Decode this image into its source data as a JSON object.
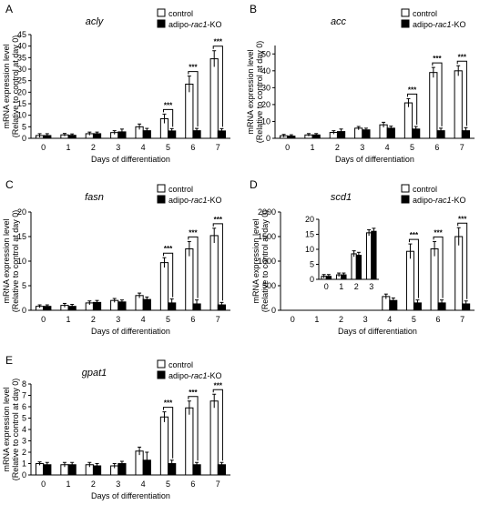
{
  "chart_data": [
    {
      "id": "A",
      "panel_label": "A",
      "type": "bar",
      "title": "acly",
      "ylabel": "mRNA expression level",
      "ylabel2": "(Relative to control at day 0)",
      "xlabel": "Days of differentiation",
      "categories": [
        "0",
        "1",
        "2",
        "3",
        "4",
        "5",
        "6",
        "7"
      ],
      "ylim": [
        0,
        45
      ],
      "yticks": [
        "0",
        "5",
        "10",
        "15",
        "20",
        "25",
        "30",
        "35",
        "40",
        "45"
      ],
      "legend": {
        "placement": "top-right",
        "items": [
          {
            "prefix": "control",
            "italic": "",
            "suffix": ""
          },
          {
            "prefix": "adipo-",
            "italic": "rac1",
            "suffix": "-KO"
          }
        ]
      },
      "series": [
        {
          "fill": "#ffffff",
          "values": [
            1.2,
            1.5,
            2,
            2.5,
            5,
            8.5,
            23.5,
            34.5
          ],
          "errors": [
            0.8,
            0.6,
            0.7,
            0.8,
            1.2,
            2,
            3.5,
            3.5
          ]
        },
        {
          "fill": "#000000",
          "values": [
            1.2,
            1.3,
            2,
            2.8,
            3.3,
            3.2,
            3.3,
            3.2
          ],
          "errors": [
            0.8,
            0.6,
            0.7,
            1.2,
            1,
            1,
            1,
            1
          ]
        }
      ],
      "significance": [
        {
          "index": 5,
          "label": "***"
        },
        {
          "index": 6,
          "label": "***"
        },
        {
          "index": 7,
          "label": "***"
        }
      ]
    },
    {
      "id": "B",
      "panel_label": "B",
      "type": "bar",
      "title": "acc",
      "ylabel": "mRNA expression level",
      "ylabel2": "(Relative to control at day 0)",
      "xlabel": "Days of differentiation",
      "categories": [
        "0",
        "1",
        "2",
        "3",
        "4",
        "5",
        "6",
        "7"
      ],
      "ylim": [
        0,
        55
      ],
      "yticks": [
        "0",
        "10",
        "20",
        "30",
        "40",
        "50"
      ],
      "legend": {
        "placement": "top-right",
        "items": [
          {
            "prefix": "control",
            "italic": "",
            "suffix": ""
          },
          {
            "prefix": "adipo-",
            "italic": "rac1",
            "suffix": "-KO"
          }
        ]
      },
      "series": [
        {
          "fill": "#ffffff",
          "values": [
            1.5,
            2,
            3.5,
            6,
            8,
            21,
            39,
            40
          ],
          "errors": [
            0.8,
            0.8,
            1,
            1,
            1.5,
            2.5,
            3,
            3
          ]
        },
        {
          "fill": "#000000",
          "values": [
            1.3,
            2,
            4,
            5,
            6,
            5.5,
            4.5,
            4.5
          ],
          "errors": [
            0.8,
            0.8,
            1.5,
            1,
            1.2,
            1.5,
            1.5,
            1.8
          ]
        }
      ],
      "significance": [
        {
          "index": 5,
          "label": "***"
        },
        {
          "index": 6,
          "label": "***"
        },
        {
          "index": 7,
          "label": "***"
        }
      ]
    },
    {
      "id": "C",
      "panel_label": "C",
      "type": "bar",
      "title": "fasn",
      "ylabel": "mRNA expression level",
      "ylabel2": "(Relative to control at day 0)",
      "xlabel": "Days of differentiation",
      "categories": [
        "0",
        "1",
        "2",
        "3",
        "4",
        "5",
        "6",
        "7"
      ],
      "ylim": [
        0,
        20
      ],
      "yticks": [
        "0",
        "5",
        "10",
        "15",
        "20"
      ],
      "legend": {
        "placement": "top-right",
        "items": [
          {
            "prefix": "control",
            "italic": "",
            "suffix": ""
          },
          {
            "prefix": "adipo-",
            "italic": "rac1",
            "suffix": "-KO"
          }
        ]
      },
      "series": [
        {
          "fill": "#ffffff",
          "values": [
            0.8,
            1,
            1.5,
            2,
            3,
            9.7,
            12.5,
            15.2
          ],
          "errors": [
            0.3,
            0.4,
            0.4,
            0.4,
            0.5,
            1,
            1.5,
            1.5
          ]
        },
        {
          "fill": "#000000",
          "values": [
            0.8,
            0.8,
            1.6,
            1.7,
            2.2,
            1.5,
            1.3,
            1.1
          ],
          "errors": [
            0.3,
            0.4,
            0.4,
            0.4,
            0.5,
            0.8,
            0.8,
            0.5
          ]
        }
      ],
      "significance": [
        {
          "index": 5,
          "label": "***"
        },
        {
          "index": 6,
          "label": "***"
        },
        {
          "index": 7,
          "label": "***"
        }
      ]
    },
    {
      "id": "D",
      "panel_label": "D",
      "type": "bar",
      "title": "scd1",
      "ylabel": "mRNA expression level",
      "ylabel2": "(Relative to control at day 0)",
      "xlabel": "Days of differentiation",
      "categories": [
        "0",
        "1",
        "2",
        "3",
        "4",
        "5",
        "6",
        "7"
      ],
      "ylim": [
        0,
        2000
      ],
      "yticks": [
        "0",
        "500",
        "1000",
        "1500",
        "2000"
      ],
      "legend": {
        "placement": "top-right",
        "items": [
          {
            "prefix": "control",
            "italic": "",
            "suffix": ""
          },
          {
            "prefix": "adipo-",
            "italic": "rac1",
            "suffix": "-KO"
          }
        ]
      },
      "series": [
        {
          "fill": "#ffffff",
          "values": [
            null,
            null,
            null,
            null,
            280,
            1200,
            1250,
            1500
          ],
          "errors": [
            0,
            0,
            0,
            0,
            50,
            150,
            150,
            180
          ]
        },
        {
          "fill": "#000000",
          "values": [
            null,
            null,
            null,
            null,
            200,
            150,
            150,
            130
          ],
          "errors": [
            0,
            0,
            0,
            0,
            50,
            60,
            60,
            60
          ]
        }
      ],
      "significance": [
        {
          "index": 5,
          "label": "***"
        },
        {
          "index": 6,
          "label": "***"
        },
        {
          "index": 7,
          "label": "***"
        }
      ],
      "inset": {
        "type": "bar",
        "categories": [
          "0",
          "1",
          "2",
          "3"
        ],
        "ylim": [
          0,
          20
        ],
        "yticks": [
          "0",
          "5",
          "10",
          "15",
          "20"
        ],
        "series": [
          {
            "fill": "#ffffff",
            "values": [
              1,
              1.5,
              8.5,
              15.5
            ],
            "errors": [
              0.6,
              0.6,
              1,
              1
            ]
          },
          {
            "fill": "#000000",
            "values": [
              1,
              1.5,
              8,
              16
            ],
            "errors": [
              0.6,
              0.6,
              1,
              1
            ]
          }
        ]
      }
    },
    {
      "id": "E",
      "panel_label": "E",
      "type": "bar",
      "title": "gpat1",
      "ylabel": "mRNA expression level",
      "ylabel2": "(Relative to control at day 0)",
      "xlabel": "Days of differentiation",
      "categories": [
        "0",
        "1",
        "2",
        "3",
        "4",
        "5",
        "6",
        "7"
      ],
      "ylim": [
        0,
        8
      ],
      "yticks": [
        "0",
        "1",
        "2",
        "3",
        "4",
        "5",
        "6",
        "7",
        "8"
      ],
      "legend": {
        "placement": "top-right",
        "items": [
          {
            "prefix": "control",
            "italic": "",
            "suffix": ""
          },
          {
            "prefix": "adipo-",
            "italic": "rac1",
            "suffix": "-KO"
          }
        ]
      },
      "series": [
        {
          "fill": "#ffffff",
          "values": [
            1,
            0.9,
            0.9,
            0.8,
            2.1,
            5.1,
            5.9,
            6.5
          ],
          "errors": [
            0.15,
            0.2,
            0.2,
            0.2,
            0.35,
            0.45,
            0.6,
            0.6
          ]
        },
        {
          "fill": "#000000",
          "values": [
            0.9,
            0.9,
            0.8,
            1,
            1.3,
            1,
            0.9,
            0.9
          ],
          "errors": [
            0.2,
            0.2,
            0.2,
            0.2,
            0.7,
            0.3,
            0.2,
            0.2
          ]
        }
      ],
      "significance": [
        {
          "index": 5,
          "label": "***"
        },
        {
          "index": 6,
          "label": "***"
        },
        {
          "index": 7,
          "label": "***"
        }
      ]
    }
  ]
}
